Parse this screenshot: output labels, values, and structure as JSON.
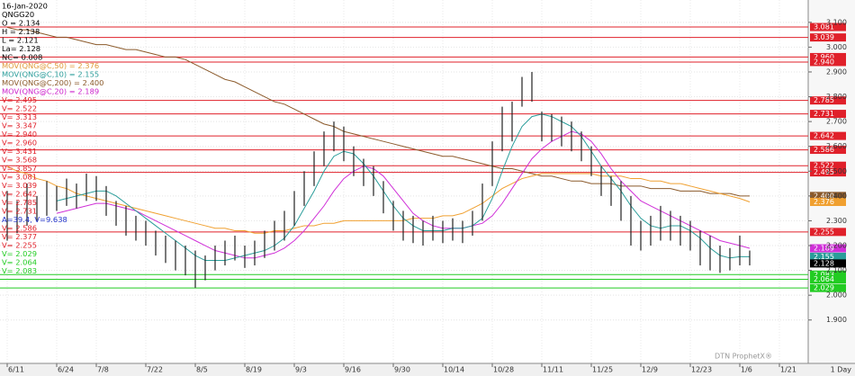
{
  "chart_data": {
    "type": "hl_bars",
    "symbol_info": [
      {
        "text": "16-Jan-2020",
        "color": "#000000"
      },
      {
        "text": "QNGG20",
        "color": "#000000"
      },
      {
        "text": "O = 2.134",
        "color": "#000000"
      },
      {
        "text": "H = 2.138",
        "color": "#000000"
      },
      {
        "text": "L = 2.121",
        "color": "#000000"
      },
      {
        "text": "La= 2.128",
        "color": "#000000"
      },
      {
        "text": "NC= 0.008",
        "color": "#000000"
      },
      {
        "text": "MOV(QNG@C,50) = 2.376",
        "color": "#e09a3a"
      },
      {
        "text": "MOV(QNG@C,10) = 2.155",
        "color": "#2a9d9a"
      },
      {
        "text": "MOV(QNG@C,200) = 2.400",
        "color": "#8b5a2b"
      },
      {
        "text": "MOV(QNG@C,20) = 2.189",
        "color": "#cc22cc"
      },
      {
        "text": "V= 2.495",
        "color": "#e0202a"
      },
      {
        "text": "V= 2.522",
        "color": "#e0202a"
      },
      {
        "text": "V= 3.313",
        "color": "#e0202a"
      },
      {
        "text": "V= 3.347",
        "color": "#e0202a"
      },
      {
        "text": "V= 2.940",
        "color": "#e0202a"
      },
      {
        "text": "V= 2.960",
        "color": "#e0202a"
      },
      {
        "text": "V= 3.431",
        "color": "#e0202a"
      },
      {
        "text": "V= 3.568",
        "color": "#e0202a"
      },
      {
        "text": "V= 3.857",
        "color": "#e0202a"
      },
      {
        "text": "V= 3.081",
        "color": "#e0202a"
      },
      {
        "text": "V= 3.039",
        "color": "#e0202a"
      },
      {
        "text": "V= 2.642",
        "color": "#e0202a"
      },
      {
        "text": "V= 2.785",
        "color": "#e0202a"
      },
      {
        "text": "V= 2.731",
        "color": "#e0202a"
      },
      {
        "text": "A=39.4, V=9.638",
        "color": "#2233cc"
      },
      {
        "text": "V= 2.586",
        "color": "#e0202a"
      },
      {
        "text": "V= 2.377",
        "color": "#e0202a"
      },
      {
        "text": "V= 2.255",
        "color": "#e0202a"
      },
      {
        "text": "V= 2.029",
        "color": "#22cc22"
      },
      {
        "text": "V= 2.064",
        "color": "#22cc22"
      },
      {
        "text": "V= 2.083",
        "color": "#22cc22"
      }
    ],
    "categories": [
      "6/11",
      null,
      null,
      null,
      null,
      "6/24",
      null,
      null,
      null,
      "7/8",
      null,
      null,
      null,
      null,
      "7/22",
      null,
      null,
      null,
      null,
      "8/5",
      null,
      null,
      null,
      null,
      "8/19",
      null,
      null,
      null,
      null,
      "9/3",
      null,
      null,
      null,
      null,
      "9/16",
      null,
      null,
      null,
      null,
      "9/30",
      null,
      null,
      null,
      null,
      "10/14",
      null,
      null,
      null,
      null,
      "10/28",
      null,
      null,
      null,
      null,
      "11/11",
      null,
      null,
      null,
      null,
      "11/25",
      null,
      null,
      null,
      null,
      "12/9",
      null,
      null,
      null,
      null,
      "12/23",
      null,
      null,
      null,
      null,
      "1/6",
      null,
      null,
      null,
      "1/21",
      null
    ],
    "bars": {
      "color": "#222222",
      "high": [
        2.42,
        2.38,
        2.45,
        2.4,
        2.46,
        2.44,
        2.47,
        2.45,
        2.49,
        2.48,
        2.44,
        2.38,
        2.36,
        2.32,
        2.3,
        2.26,
        2.24,
        2.22,
        2.2,
        2.18,
        2.16,
        2.2,
        2.22,
        2.24,
        2.2,
        2.22,
        2.26,
        2.3,
        2.34,
        2.42,
        2.5,
        2.58,
        2.66,
        2.7,
        2.68,
        2.6,
        2.55,
        2.52,
        2.46,
        2.38,
        2.34,
        2.32,
        2.3,
        2.32,
        2.3,
        2.31,
        2.3,
        2.34,
        2.45,
        2.62,
        2.76,
        2.78,
        2.88,
        2.9,
        2.74,
        2.73,
        2.72,
        2.7,
        2.66,
        2.6,
        2.52,
        2.48,
        2.46,
        2.4,
        2.3,
        2.32,
        2.36,
        2.34,
        2.32,
        2.3,
        2.26,
        2.24,
        2.2,
        2.19,
        2.24,
        2.18,
        null,
        null,
        null,
        null
      ],
      "low": [
        2.22,
        2.25,
        2.28,
        2.3,
        2.32,
        2.34,
        2.36,
        2.35,
        2.38,
        2.38,
        2.32,
        2.28,
        2.24,
        2.22,
        2.2,
        2.16,
        2.13,
        2.1,
        2.08,
        2.03,
        2.06,
        2.1,
        2.12,
        2.14,
        2.11,
        2.12,
        2.15,
        2.18,
        2.22,
        2.28,
        2.36,
        2.44,
        2.52,
        2.58,
        2.54,
        2.48,
        2.44,
        2.4,
        2.33,
        2.26,
        2.22,
        2.21,
        2.2,
        2.22,
        2.21,
        2.22,
        2.21,
        2.24,
        2.3,
        2.44,
        2.58,
        2.62,
        2.76,
        2.78,
        2.62,
        2.62,
        2.6,
        2.58,
        2.54,
        2.48,
        2.4,
        2.36,
        2.3,
        2.2,
        2.18,
        2.2,
        2.22,
        2.22,
        2.2,
        2.18,
        2.12,
        2.1,
        2.09,
        2.1,
        2.12,
        2.12,
        null,
        null,
        null,
        null
      ]
    },
    "series": [
      {
        "name": "MOV(QNG@C,200)",
        "color": "#8b5a2b",
        "last_label": "2.400",
        "values": [
          3.08,
          3.07,
          3.07,
          3.06,
          3.05,
          3.04,
          3.04,
          3.03,
          3.02,
          3.01,
          3.01,
          3.0,
          2.99,
          2.99,
          2.98,
          2.97,
          2.96,
          2.96,
          2.95,
          2.93,
          2.91,
          2.89,
          2.87,
          2.86,
          2.84,
          2.82,
          2.8,
          2.78,
          2.77,
          2.75,
          2.73,
          2.71,
          2.69,
          2.68,
          2.66,
          2.65,
          2.64,
          2.63,
          2.62,
          2.61,
          2.6,
          2.59,
          2.58,
          2.57,
          2.56,
          2.56,
          2.55,
          2.54,
          2.53,
          2.52,
          2.51,
          2.51,
          2.5,
          2.49,
          2.48,
          2.48,
          2.47,
          2.46,
          2.46,
          2.45,
          2.45,
          2.45,
          2.44,
          2.44,
          2.44,
          2.43,
          2.43,
          2.43,
          2.42,
          2.42,
          2.42,
          2.41,
          2.41,
          2.41,
          2.4,
          2.4,
          null,
          null,
          null,
          null
        ]
      },
      {
        "name": "MOV(QNG@C,50)",
        "color": "#f0a030",
        "last_label": "2.376",
        "values": [
          2.52,
          2.5,
          2.49,
          2.47,
          2.46,
          2.44,
          2.43,
          2.41,
          2.4,
          2.39,
          2.38,
          2.37,
          2.36,
          2.35,
          2.34,
          2.33,
          2.32,
          2.31,
          2.3,
          2.29,
          2.28,
          2.27,
          2.27,
          2.26,
          2.26,
          2.25,
          2.25,
          2.26,
          2.26,
          2.27,
          2.28,
          2.28,
          2.29,
          2.29,
          2.3,
          2.3,
          2.3,
          2.3,
          2.3,
          2.3,
          2.3,
          2.31,
          2.31,
          2.31,
          2.32,
          2.32,
          2.33,
          2.35,
          2.37,
          2.4,
          2.43,
          2.45,
          2.47,
          2.48,
          2.49,
          2.49,
          2.49,
          2.49,
          2.49,
          2.49,
          2.48,
          2.48,
          2.48,
          2.47,
          2.47,
          2.46,
          2.46,
          2.45,
          2.45,
          2.44,
          2.43,
          2.42,
          2.41,
          2.4,
          2.39,
          2.376,
          null,
          null,
          null,
          null
        ]
      },
      {
        "name": "MOV(QNG@C,20)",
        "color": "#d030d8",
        "last_label": "2.189",
        "values": [
          null,
          null,
          null,
          null,
          null,
          2.33,
          2.34,
          2.35,
          2.36,
          2.37,
          2.37,
          2.36,
          2.35,
          2.34,
          2.32,
          2.3,
          2.28,
          2.26,
          2.24,
          2.22,
          2.2,
          2.18,
          2.17,
          2.16,
          2.15,
          2.15,
          2.16,
          2.17,
          2.19,
          2.22,
          2.26,
          2.31,
          2.36,
          2.42,
          2.47,
          2.5,
          2.52,
          2.51,
          2.48,
          2.43,
          2.38,
          2.33,
          2.3,
          2.28,
          2.27,
          2.27,
          2.27,
          2.28,
          2.29,
          2.32,
          2.37,
          2.43,
          2.49,
          2.55,
          2.59,
          2.62,
          2.64,
          2.66,
          2.65,
          2.62,
          2.57,
          2.51,
          2.46,
          2.42,
          2.38,
          2.36,
          2.34,
          2.32,
          2.3,
          2.28,
          2.26,
          2.24,
          2.22,
          2.21,
          2.2,
          2.189,
          null,
          null,
          null,
          null
        ]
      },
      {
        "name": "MOV(QNG@C,10)",
        "color": "#2a9d9a",
        "last_label": "2.155",
        "values": [
          null,
          null,
          null,
          null,
          null,
          2.38,
          2.39,
          2.4,
          2.41,
          2.42,
          2.42,
          2.4,
          2.37,
          2.34,
          2.31,
          2.28,
          2.25,
          2.22,
          2.19,
          2.16,
          2.14,
          2.14,
          2.14,
          2.15,
          2.16,
          2.17,
          2.18,
          2.2,
          2.23,
          2.28,
          2.35,
          2.42,
          2.5,
          2.56,
          2.58,
          2.57,
          2.53,
          2.48,
          2.42,
          2.36,
          2.31,
          2.28,
          2.26,
          2.26,
          2.26,
          2.27,
          2.27,
          2.28,
          2.31,
          2.39,
          2.5,
          2.6,
          2.68,
          2.72,
          2.73,
          2.72,
          2.7,
          2.68,
          2.64,
          2.58,
          2.52,
          2.47,
          2.42,
          2.36,
          2.31,
          2.28,
          2.27,
          2.28,
          2.28,
          2.26,
          2.23,
          2.19,
          2.16,
          2.15,
          2.155,
          2.155,
          null,
          null,
          null,
          null
        ]
      }
    ],
    "last_price": 2.128,
    "levels": [
      {
        "value": 3.081,
        "label": "3.081",
        "color": "#e0202a"
      },
      {
        "value": 3.039,
        "label": "3.039",
        "color": "#e0202a"
      },
      {
        "value": 2.96,
        "label": "2.960",
        "color": "#e0202a"
      },
      {
        "value": 2.94,
        "label": "2.940",
        "color": "#e0202a"
      },
      {
        "value": 2.785,
        "label": "2.785",
        "color": "#e0202a"
      },
      {
        "value": 2.731,
        "label": "2.731",
        "color": "#e0202a"
      },
      {
        "value": 2.642,
        "label": "2.642",
        "color": "#e0202a"
      },
      {
        "value": 2.586,
        "label": "2.586",
        "color": "#e0202a"
      },
      {
        "value": 2.522,
        "label": "2.522",
        "color": "#e0202a"
      },
      {
        "value": 2.495,
        "label": "2.495",
        "color": "#e0202a"
      },
      {
        "value": 2.255,
        "label": "2.255",
        "color": "#e0202a"
      },
      {
        "value": 2.083,
        "label": "2.083",
        "color": "#22cc22"
      },
      {
        "value": 2.064,
        "label": "2.064",
        "color": "#22cc22"
      },
      {
        "value": 2.029,
        "label": "2.029",
        "color": "#22cc22"
      }
    ],
    "ylim": [
      1.725,
      3.19
    ],
    "yticks": [
      {
        "value": 1.9,
        "label": "1.900"
      },
      {
        "value": 2.0,
        "label": "2.000"
      },
      {
        "value": 2.1,
        "label": "2.100"
      },
      {
        "value": 2.2,
        "label": "2.200"
      },
      {
        "value": 2.3,
        "label": "2.300"
      },
      {
        "value": 2.4,
        "label": "2.400"
      },
      {
        "value": 2.5,
        "label": "2.500"
      },
      {
        "value": 2.6,
        "label": "2.600"
      },
      {
        "value": 2.7,
        "label": "2.700"
      },
      {
        "value": 2.8,
        "label": "2.800"
      },
      {
        "value": 2.9,
        "label": "2.900"
      },
      {
        "value": 3.0,
        "label": "3.000"
      },
      {
        "value": 3.1,
        "label": "3.100"
      }
    ],
    "grid": true,
    "watermark": "DTN ProphetX®",
    "period": "1 Day"
  }
}
